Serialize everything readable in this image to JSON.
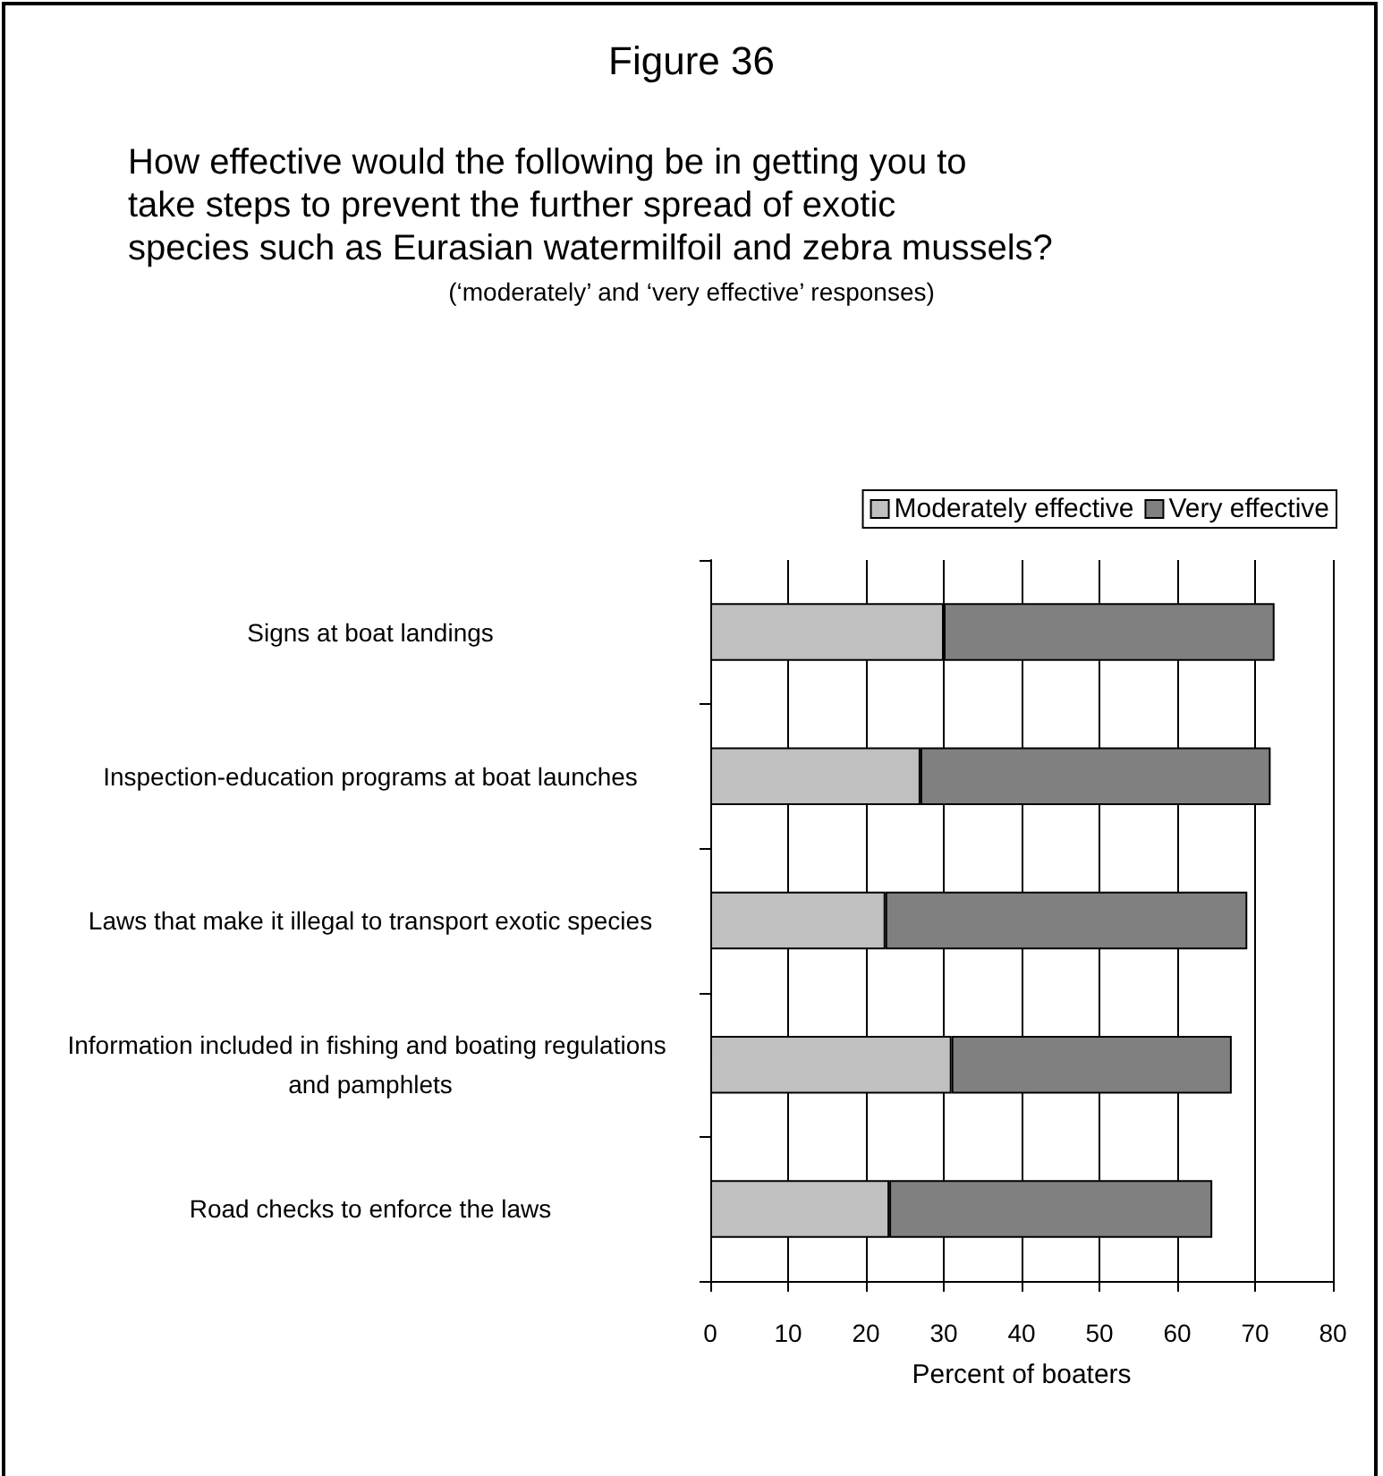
{
  "chart_data": {
    "type": "bar",
    "orientation": "horizontal",
    "stacked": true,
    "title": "Figure 36",
    "subtitle": "How effective would the following be in getting you to take steps to prevent the further spread of exotic species such as Eurasian watermilfoil and zebra mussels?",
    "annotations": [
      "(‘moderately’ and ‘very effective’ responses)"
    ],
    "xlabel": "Percent of boaters",
    "categories": [
      "Signs at boat landings",
      "Inspection-education programs at boat launches",
      "Laws that make it illegal to transport exotic species",
      "Information included in fishing and boating regulations and pamphlets",
      "Road checks to enforce the laws"
    ],
    "series": [
      {
        "name": "Moderately effective",
        "color": "#c0c0c0",
        "values": [
          30,
          27,
          22.5,
          31,
          23
        ]
      },
      {
        "name": "Very effective",
        "color": "#808080",
        "values": [
          42.5,
          45,
          46.5,
          36,
          41.5
        ]
      }
    ],
    "xlim": [
      0,
      80
    ],
    "xticks": [
      0,
      10,
      20,
      30,
      40,
      50,
      60,
      70,
      80
    ],
    "grid": "x",
    "legend": "top right"
  }
}
